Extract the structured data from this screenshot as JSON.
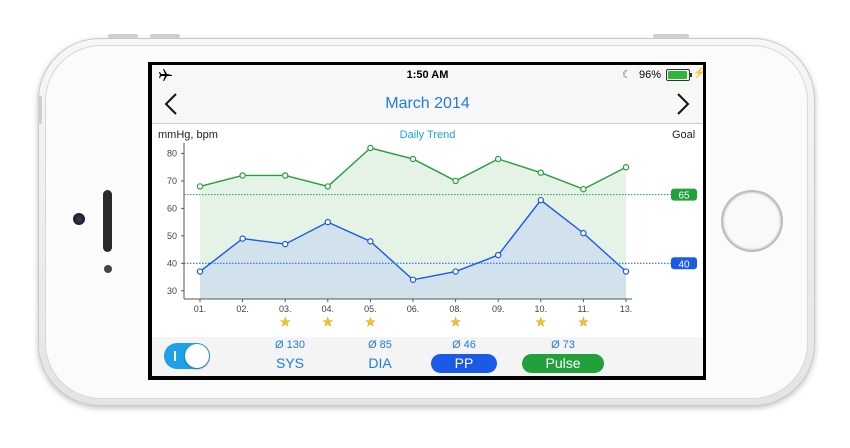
{
  "statusbar": {
    "time": "1:50 AM",
    "battery": "96%"
  },
  "nav": {
    "title": "March 2014"
  },
  "chart_header": {
    "units": "mmHg, bpm",
    "trend": "Daily Trend",
    "goal": "Goal"
  },
  "colors": {
    "accent": "#1f7ce6",
    "sys_green": "#22a03c",
    "dia_blue": "#1a5ae6"
  },
  "chart_data": {
    "type": "line",
    "categories": [
      "01.",
      "02.",
      "03.",
      "04.",
      "05.",
      "06.",
      "08.",
      "09.",
      "10.",
      "11.",
      "13."
    ],
    "series": [
      {
        "values": [
          68,
          72,
          72,
          68,
          82,
          78,
          70,
          78,
          73,
          67,
          75
        ]
      },
      {
        "values": [
          37,
          49,
          47,
          55,
          48,
          34,
          37,
          43,
          63,
          51,
          37
        ]
      }
    ],
    "yticks": [
      "30",
      "40",
      "50",
      "60",
      "70",
      "80"
    ],
    "ylim": [
      27,
      86
    ],
    "goals": [
      {
        "label": "65",
        "value": 65
      },
      {
        "label": "40",
        "value": 40
      }
    ],
    "star_flags": [
      false,
      false,
      true,
      true,
      true,
      false,
      true,
      false,
      true,
      true,
      false
    ],
    "grid": false
  },
  "bottom": {
    "metrics": [
      {
        "avg": "Ø 130",
        "label": "SYS"
      },
      {
        "avg": "Ø 85",
        "label": "DIA"
      },
      {
        "avg": "Ø 46",
        "label": "PP"
      },
      {
        "avg": "Ø 73",
        "label": "Pulse"
      }
    ]
  }
}
